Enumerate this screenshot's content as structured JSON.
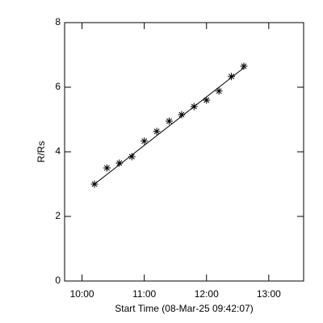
{
  "chart_data": {
    "type": "scatter",
    "xlabel": "Start Time (08-Mar-25 09:42:07)",
    "ylabel": "R/Rs",
    "x": [
      10.2,
      10.4,
      10.6,
      10.8,
      11.0,
      11.2,
      11.4,
      11.6,
      11.8,
      12.0,
      12.2,
      12.4,
      12.6
    ],
    "series": [
      {
        "color": "#000000",
        "values": [
          3.0,
          3.5,
          3.65,
          3.85,
          4.33,
          4.63,
          4.95,
          5.15,
          5.4,
          5.6,
          5.88,
          6.33,
          6.65
        ]
      }
    ],
    "fit": {
      "x": [
        10.2,
        12.6
      ],
      "values": [
        3.0,
        6.6
      ]
    },
    "xlim": [
      9.72,
      13.56
    ],
    "xticks": [
      {
        "value": 10,
        "label": "10:00"
      },
      {
        "value": 11,
        "label": "11:00"
      },
      {
        "value": 12,
        "label": "12:00"
      },
      {
        "value": 13,
        "label": "13:00"
      }
    ],
    "ylim": [
      0,
      8
    ],
    "yticks": [
      0,
      2,
      4,
      6,
      8
    ]
  }
}
